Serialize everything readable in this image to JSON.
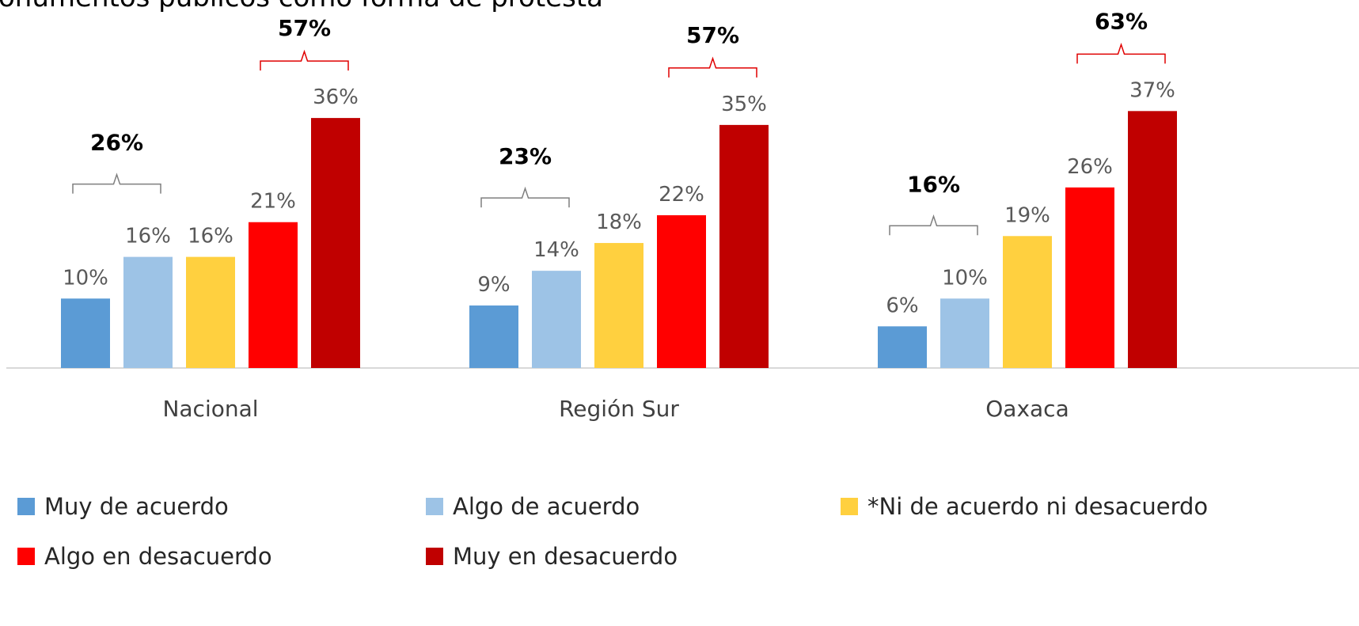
{
  "chart_data": {
    "type": "bar",
    "title": "onumentos públicos como forma de protesta",
    "categories": [
      "Nacional",
      "Región Sur",
      "Oaxaca"
    ],
    "ylim": [
      0,
      40
    ],
    "series": [
      {
        "name": "Muy de acuerdo",
        "color": "#5b9bd5",
        "values": [
          10,
          9,
          6
        ],
        "value_labels": [
          "10%",
          "9%",
          "6%"
        ]
      },
      {
        "name": "Algo de acuerdo",
        "color": "#9dc3e6",
        "values": [
          16,
          14,
          10
        ],
        "value_labels": [
          "16%",
          "14%",
          "10%"
        ]
      },
      {
        "name": "*Ni de acuerdo ni desacuerdo",
        "color": "#ffd03f",
        "values": [
          16,
          18,
          19
        ],
        "value_labels": [
          "16%",
          "18%",
          "19%"
        ]
      },
      {
        "name": "Algo en desacuerdo",
        "color": "#ff0000",
        "values": [
          21,
          22,
          26
        ],
        "value_labels": [
          "21%",
          "22%",
          "26%"
        ]
      },
      {
        "name": "Muy en desacuerdo",
        "color": "#c00000",
        "values": [
          36,
          35,
          37
        ],
        "value_labels": [
          "36%",
          "35%",
          "37%"
        ]
      }
    ],
    "agree_totals": {
      "color": "#7f7f7f",
      "values": [
        26,
        23,
        16
      ],
      "value_labels": [
        "26%",
        "23%",
        "16%"
      ]
    },
    "disagree_totals": {
      "color": "#e00000",
      "values": [
        57,
        57,
        63
      ],
      "value_labels": [
        "57%",
        "57%",
        "63%"
      ]
    }
  }
}
